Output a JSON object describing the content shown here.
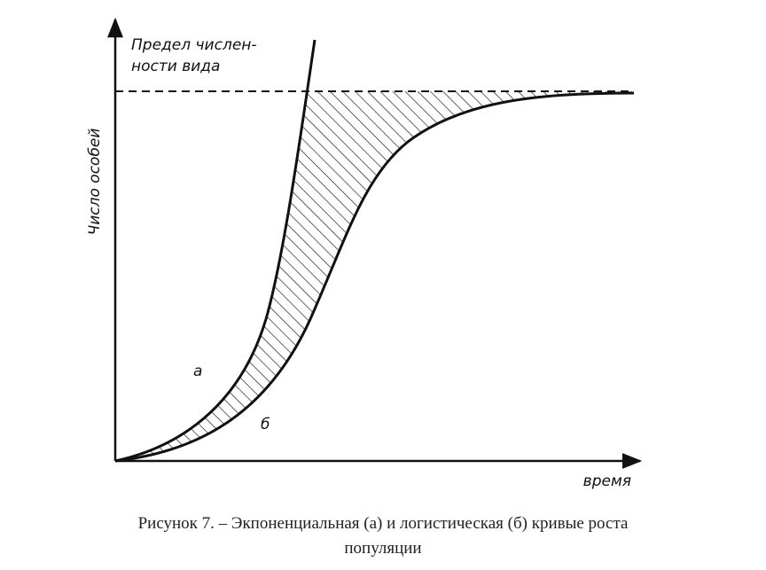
{
  "figure": {
    "limit_label": [
      "Предел числен-",
      "ности вида"
    ],
    "y_axis_label": "Число особей",
    "x_axis_label": "время",
    "curve_a_label": "а",
    "curve_b_label": "б",
    "caption": [
      "Рисунок 7. – Экпоненциальная (а) и логистическая (б) кривые роста",
      "популяции"
    ]
  }
}
